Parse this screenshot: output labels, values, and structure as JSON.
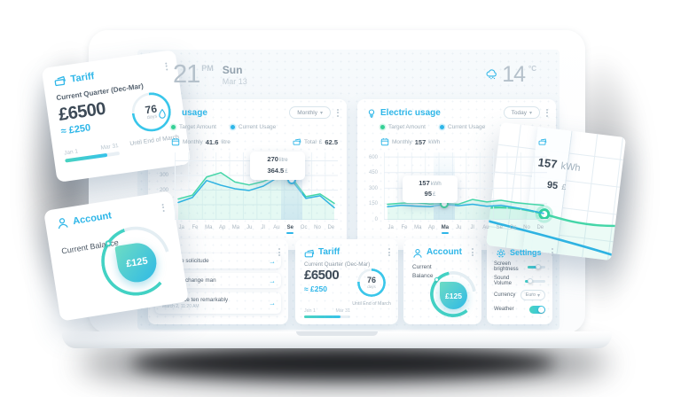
{
  "header": {
    "time": "21",
    "time_period": "PM",
    "day": "Sun",
    "date": "Mar 13",
    "temperature": "14",
    "temperature_unit": "°C"
  },
  "water_card": {
    "title": "usage",
    "range_selector": "Monthly",
    "legend": {
      "target": "Target Amount",
      "current": "Current Usage"
    },
    "period_label": "Monthly",
    "period_value": "41.6",
    "period_unit": "litre",
    "total_label": "Total",
    "total_currency": "£",
    "total_value": "62.5"
  },
  "electric_card": {
    "title": "Electric usage",
    "range_selector": "Today",
    "legend": {
      "target": "Target Amount",
      "current": "Current Usage"
    },
    "period_label": "Monthly",
    "period_value": "157",
    "period_unit": "kWh"
  },
  "messages_card": {
    "items": [
      {
        "text": "se solicitude"
      },
      {
        "text": "change man"
      },
      {
        "text": "Indulgence ten remarkably",
        "time": "March 2, 11:20 AM"
      }
    ]
  },
  "tariff_card": {
    "title": "Tariff",
    "quarter": "Current Quarter (Dec-Mar)",
    "amount": "£6500",
    "secondary_amount": "≈ £250",
    "period_start": "Jan 1",
    "period_end": "Mar 31",
    "progress_pct": 78,
    "days_remaining": "76",
    "days_label": "days",
    "until_label": "Until End of March"
  },
  "account_card": {
    "title": "Account",
    "balance_label": "Current Balance",
    "balance": "£125"
  },
  "settings_card": {
    "title": "Settings",
    "brightness_label": "Screen brightness",
    "brightness_pct": 62,
    "volume_label": "Sound Volume",
    "volume_pct": 25,
    "currency_label": "Currency",
    "currency_value": "Euro",
    "weather_label": "Weather",
    "weather_on": true
  },
  "colors": {
    "accent": "#2eb6e8",
    "green": "#35d096",
    "text_dark": "#3d4a57",
    "text_gray": "#a3b1bc"
  },
  "chart_data": [
    {
      "type": "line",
      "title": "Water usage",
      "ylabel": "litre",
      "x": [
        "Ja",
        "Fe",
        "Ma",
        "Ap",
        "Ma",
        "Ju",
        "Jl",
        "Au",
        "Se",
        "Oc",
        "No",
        "De"
      ],
      "ylim": [
        0,
        460
      ],
      "yticks": [
        400,
        300,
        200
      ],
      "grid": true,
      "active_index": 8,
      "marker_series": 1,
      "series": [
        {
          "name": "Target Amount",
          "color": "#45d6a8",
          "values": [
            142,
            168,
            292,
            322,
            258,
            238,
            262,
            300,
            288,
            158,
            176,
            112
          ]
        },
        {
          "name": "Current Usage",
          "color": "#2fb3e2",
          "values": [
            118,
            152,
            268,
            236,
            212,
            200,
            230,
            288,
            270,
            146,
            164,
            82
          ]
        }
      ],
      "tooltip": {
        "value": "270",
        "unit": "litre",
        "cost": "364.5",
        "cost_unit": "£"
      }
    },
    {
      "type": "line",
      "title": "Electric usage",
      "ylabel": "kWh",
      "x": [
        "Ja",
        "Fe",
        "Ma",
        "Ap",
        "Ma",
        "Ju",
        "Jl",
        "Au",
        "Se",
        "Oc",
        "No",
        "De"
      ],
      "ylim": [
        0,
        650
      ],
      "yticks": [
        600,
        450,
        300,
        150,
        0
      ],
      "grid": true,
      "active_index": 4,
      "marker_series": 0,
      "series": [
        {
          "name": "Target Amount",
          "color": "#45d6a8",
          "values": [
            150,
            160,
            166,
            152,
            157,
            150,
            196,
            172,
            188,
            166,
            152,
            140
          ]
        },
        {
          "name": "Current Usage",
          "color": "#2fb3e2",
          "values": [
            126,
            140,
            132,
            126,
            148,
            136,
            150,
            130,
            140,
            118,
            92,
            62
          ]
        }
      ],
      "tooltip": {
        "value": "157",
        "unit": "kWh",
        "cost": "95",
        "cost_unit": "£"
      }
    }
  ]
}
